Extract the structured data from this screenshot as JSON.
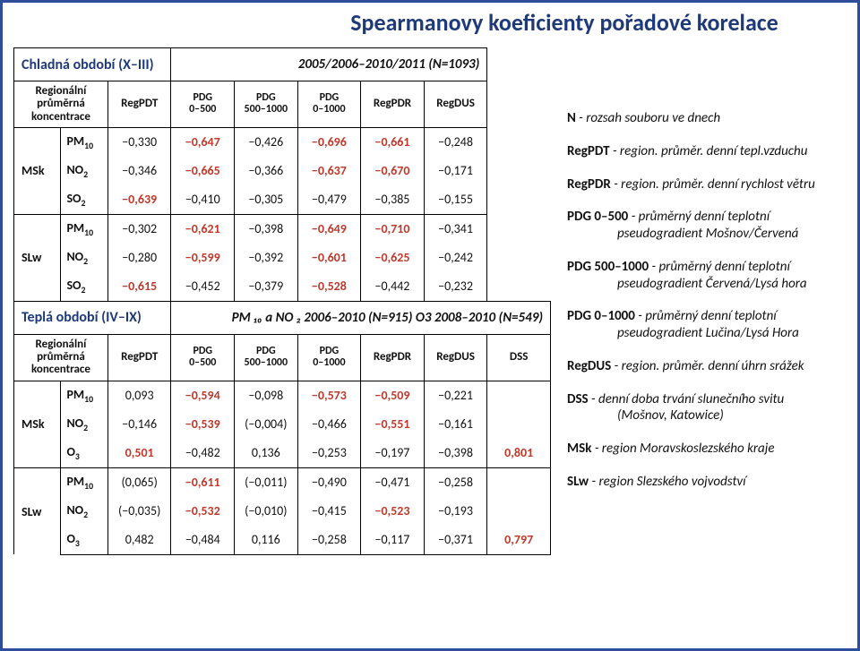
{
  "title": "Spearmanovy koeficienty pořadové korelace",
  "colors": {
    "title": "#1f3a7a",
    "red": "#c0392b",
    "text": "#111111"
  },
  "cold": {
    "section_title": "Chladná období (X–III)",
    "section_meta": "2005/2006–2010/2011 (N=1093)",
    "header_label": "Regionální průměrná koncentrace",
    "columns": [
      "RegPDT",
      "PDG 0–500",
      "PDG 500–1000",
      "PDG 0–1000",
      "RegPDR",
      "RegDUS"
    ],
    "groups": [
      {
        "name": "MSk",
        "rows": [
          {
            "pollutant": "PM₁₀",
            "vals": [
              {
                "t": "−0,330",
                "red": false
              },
              {
                "t": "−0,647",
                "red": true
              },
              {
                "t": "−0,426",
                "red": false
              },
              {
                "t": "−0,696",
                "red": true
              },
              {
                "t": "−0,661",
                "red": true
              },
              {
                "t": "−0,248",
                "red": false
              }
            ]
          },
          {
            "pollutant": "NO₂",
            "vals": [
              {
                "t": "−0,346",
                "red": false
              },
              {
                "t": "−0,665",
                "red": true
              },
              {
                "t": "−0,366",
                "red": false
              },
              {
                "t": "−0,637",
                "red": true
              },
              {
                "t": "−0,670",
                "red": true
              },
              {
                "t": "−0,171",
                "red": false
              }
            ]
          },
          {
            "pollutant": "SO₂",
            "vals": [
              {
                "t": "−0,639",
                "red": true
              },
              {
                "t": "−0,410",
                "red": false
              },
              {
                "t": "−0,305",
                "red": false
              },
              {
                "t": "−0,479",
                "red": false
              },
              {
                "t": "−0,385",
                "red": false
              },
              {
                "t": "−0,155",
                "red": false
              }
            ]
          }
        ]
      },
      {
        "name": "SLw",
        "rows": [
          {
            "pollutant": "PM₁₀",
            "vals": [
              {
                "t": "−0,302",
                "red": false
              },
              {
                "t": "−0,621",
                "red": true
              },
              {
                "t": "−0,398",
                "red": false
              },
              {
                "t": "−0,649",
                "red": true
              },
              {
                "t": "−0,710",
                "red": true
              },
              {
                "t": "−0,341",
                "red": false
              }
            ]
          },
          {
            "pollutant": "NO₂",
            "vals": [
              {
                "t": "−0,280",
                "red": false
              },
              {
                "t": "−0,599",
                "red": true
              },
              {
                "t": "−0,392",
                "red": false
              },
              {
                "t": "−0,601",
                "red": true
              },
              {
                "t": "−0,625",
                "red": true
              },
              {
                "t": "−0,242",
                "red": false
              }
            ]
          },
          {
            "pollutant": "SO₂",
            "vals": [
              {
                "t": "−0,615",
                "red": true
              },
              {
                "t": "−0,452",
                "red": false
              },
              {
                "t": "−0,379",
                "red": false
              },
              {
                "t": "−0,528",
                "red": true
              },
              {
                "t": "−0,442",
                "red": false
              },
              {
                "t": "−0,232",
                "red": false
              }
            ]
          }
        ]
      }
    ]
  },
  "warm": {
    "section_title": "Teplá období (IV–IX)",
    "section_meta": "PM ₁₀ a NO ₂ 2006–2010 (N=915)  O3 2008–2010 (N=549)",
    "header_label": "Regionální průměrná koncentrace",
    "columns": [
      "RegPDT",
      "PDG 0–500",
      "PDG 500–1000",
      "PDG 0–1000",
      "RegPDR",
      "RegDUS",
      "DSS"
    ],
    "groups": [
      {
        "name": "MSk",
        "rows": [
          {
            "pollutant": "PM₁₀",
            "vals": [
              {
                "t": "0,093",
                "red": false
              },
              {
                "t": "−0,594",
                "red": true
              },
              {
                "t": "−0,098",
                "red": false
              },
              {
                "t": "−0,573",
                "red": true
              },
              {
                "t": "−0,509",
                "red": true
              },
              {
                "t": "−0,221",
                "red": false
              },
              {
                "t": "",
                "red": false
              }
            ]
          },
          {
            "pollutant": "NO₂",
            "vals": [
              {
                "t": "−0,146",
                "red": false
              },
              {
                "t": "−0,539",
                "red": true
              },
              {
                "t": "(−0,004)",
                "red": false
              },
              {
                "t": "−0,466",
                "red": false
              },
              {
                "t": "−0,551",
                "red": true
              },
              {
                "t": "−0,161",
                "red": false
              },
              {
                "t": "",
                "red": false
              }
            ]
          },
          {
            "pollutant": "O₃",
            "vals": [
              {
                "t": "0,501",
                "red": true
              },
              {
                "t": "−0,482",
                "red": false
              },
              {
                "t": "0,136",
                "red": false
              },
              {
                "t": "−0,253",
                "red": false
              },
              {
                "t": "−0,197",
                "red": false
              },
              {
                "t": "−0,398",
                "red": false
              },
              {
                "t": "0,801",
                "red": true
              }
            ]
          }
        ]
      },
      {
        "name": "SLw",
        "rows": [
          {
            "pollutant": "PM₁₀",
            "vals": [
              {
                "t": "(0,065)",
                "red": false
              },
              {
                "t": "−0,611",
                "red": true
              },
              {
                "t": "(−0,011)",
                "red": false
              },
              {
                "t": "−0,490",
                "red": false
              },
              {
                "t": "−0,471",
                "red": false
              },
              {
                "t": "−0,258",
                "red": false
              },
              {
                "t": "",
                "red": false
              }
            ]
          },
          {
            "pollutant": "NO₂",
            "vals": [
              {
                "t": "(−0,035)",
                "red": false
              },
              {
                "t": "−0,532",
                "red": true
              },
              {
                "t": "(−0,010)",
                "red": false
              },
              {
                "t": "−0,415",
                "red": false
              },
              {
                "t": "−0,523",
                "red": true
              },
              {
                "t": "−0,193",
                "red": false
              },
              {
                "t": "",
                "red": false
              }
            ]
          },
          {
            "pollutant": "O₃",
            "vals": [
              {
                "t": "0,482",
                "red": false
              },
              {
                "t": "−0,484",
                "red": false
              },
              {
                "t": "0,116",
                "red": false
              },
              {
                "t": "−0,258",
                "red": false
              },
              {
                "t": "−0,117",
                "red": false
              },
              {
                "t": "−0,371",
                "red": false
              },
              {
                "t": "0,797",
                "red": true
              }
            ]
          }
        ]
      }
    ]
  },
  "legend": [
    {
      "term": "N",
      "desc": "- rozsah souboru ve dnech"
    },
    {
      "term": "RegPDT",
      "desc": "- region. průměr. denní tepl.vzduchu"
    },
    {
      "term": "RegPDR",
      "desc": "- region. průměr. denní rychlost větru"
    },
    {
      "term": "PDG 0–500",
      "desc": "- průměrný denní teplotní",
      "desc2": "pseudogradient Mošnov/Červená"
    },
    {
      "term": "PDG 500–1000",
      "desc": "- průměrný denní teplotní",
      "desc2": "pseudogradient Červená/Lysá hora"
    },
    {
      "term": "PDG 0–1000",
      "desc": "- průměrný denní teplotní",
      "desc2": "pseudogradient Lučina/Lysá Hora"
    },
    {
      "term": "RegDUS",
      "desc": "- region. průměr. denní úhrn srážek"
    },
    {
      "term": "DSS",
      "desc": "- denní doba trvání slunečního svitu",
      "desc2": "(Mošnov, Katowice)"
    },
    {
      "term": "MSk",
      "desc": "- region Moravskoslezského kraje"
    },
    {
      "term": "SLw",
      "desc": "- region Slezského vojvodství"
    }
  ]
}
